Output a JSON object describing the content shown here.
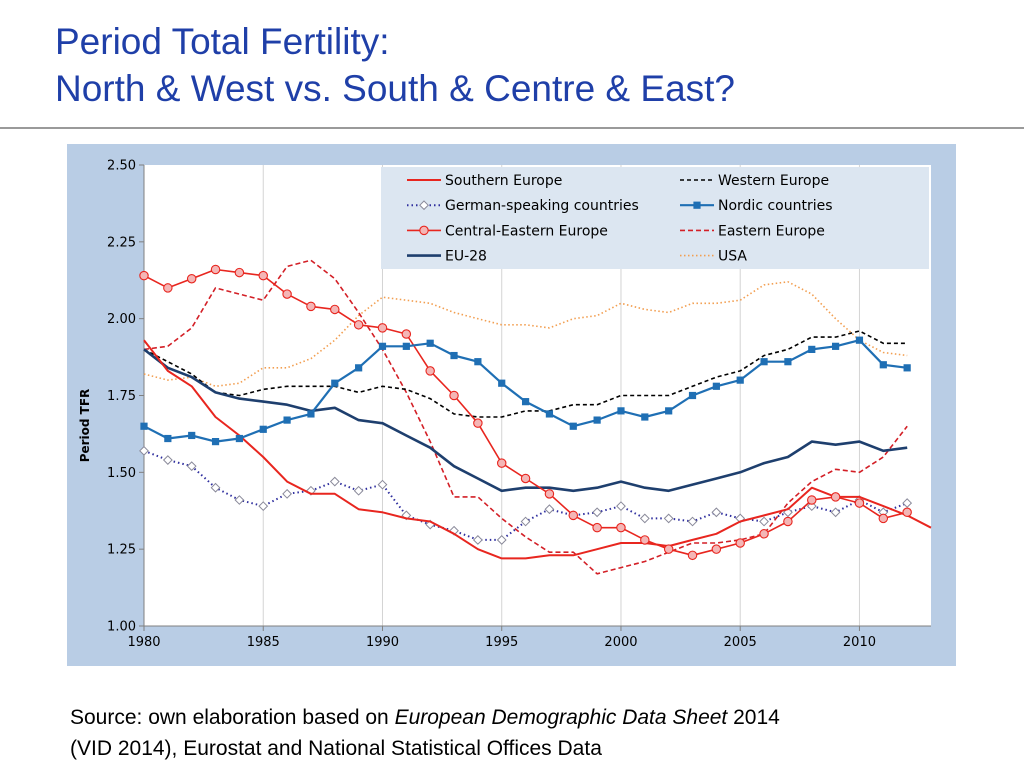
{
  "header": {
    "title_line1": "Period Total Fertility:",
    "title_line2": "North & West vs. South & Centre & East?"
  },
  "source": {
    "prefix": "Source: own elaboration based on ",
    "italic": "European Demographic Data Sheet",
    "suffix": " 2014",
    "line2": "(VID 2014), Eurostat and National Statistical Offices Data"
  },
  "colors": {
    "title": "#1f3fa8",
    "frame": "#b9cde5",
    "grid": "#d4d4d4"
  },
  "chart_data": {
    "type": "line",
    "title": "",
    "xlabel": "",
    "ylabel": "Period TFR",
    "xlim": [
      1980,
      2013
    ],
    "ylim": [
      1.0,
      2.5
    ],
    "xticks": [
      "1980",
      "1985",
      "1990",
      "1995",
      "2000",
      "2005",
      "2010"
    ],
    "yticks": [
      "1.00",
      "1.25",
      "1.50",
      "1.75",
      "2.00",
      "2.25",
      "2.50"
    ],
    "grid": "vertical",
    "legend_position": "top-right",
    "series": [
      {
        "name": "Southern Europe",
        "color": "#e8261f",
        "dash": "solid",
        "marker": "none",
        "width": 2,
        "x": [
          1980,
          1981,
          1982,
          1983,
          1984,
          1985,
          1986,
          1987,
          1988,
          1989,
          1990,
          1991,
          1992,
          1993,
          1994,
          1995,
          1996,
          1997,
          1998,
          1999,
          2000,
          2001,
          2002,
          2003,
          2004,
          2005,
          2006,
          2007,
          2008,
          2009,
          2010,
          2011,
          2012,
          2013
        ],
        "values": [
          1.93,
          1.83,
          1.78,
          1.68,
          1.62,
          1.55,
          1.47,
          1.43,
          1.43,
          1.38,
          1.37,
          1.35,
          1.34,
          1.3,
          1.25,
          1.22,
          1.22,
          1.23,
          1.23,
          1.25,
          1.27,
          1.27,
          1.26,
          1.28,
          1.3,
          1.34,
          1.36,
          1.38,
          1.45,
          1.42,
          1.42,
          1.39,
          1.36,
          1.32
        ]
      },
      {
        "name": "Western Europe",
        "color": "#000000",
        "dash": "4,3",
        "marker": "none",
        "width": 1.6,
        "x": [
          1980,
          1981,
          1982,
          1983,
          1984,
          1985,
          1986,
          1987,
          1988,
          1989,
          1990,
          1991,
          1992,
          1993,
          1994,
          1995,
          1996,
          1997,
          1998,
          1999,
          2000,
          2001,
          2002,
          2003,
          2004,
          2005,
          2006,
          2007,
          2008,
          2009,
          2010,
          2011,
          2012
        ],
        "values": [
          1.9,
          1.86,
          1.82,
          1.76,
          1.75,
          1.77,
          1.78,
          1.78,
          1.78,
          1.76,
          1.78,
          1.77,
          1.74,
          1.69,
          1.68,
          1.68,
          1.7,
          1.7,
          1.72,
          1.72,
          1.75,
          1.75,
          1.75,
          1.78,
          1.81,
          1.83,
          1.88,
          1.9,
          1.94,
          1.94,
          1.96,
          1.92,
          1.92
        ]
      },
      {
        "name": "German-speaking countries",
        "color": "#2e2e9e",
        "dash": "1.5,3",
        "marker": "diamond",
        "width": 2,
        "x": [
          1980,
          1981,
          1982,
          1983,
          1984,
          1985,
          1986,
          1987,
          1988,
          1989,
          1990,
          1991,
          1992,
          1993,
          1994,
          1995,
          1996,
          1997,
          1998,
          1999,
          2000,
          2001,
          2002,
          2003,
          2004,
          2005,
          2006,
          2007,
          2008,
          2009,
          2010,
          2011,
          2012
        ],
        "values": [
          1.57,
          1.54,
          1.52,
          1.45,
          1.41,
          1.39,
          1.43,
          1.44,
          1.47,
          1.44,
          1.46,
          1.36,
          1.33,
          1.31,
          1.28,
          1.28,
          1.34,
          1.38,
          1.36,
          1.37,
          1.39,
          1.35,
          1.35,
          1.34,
          1.37,
          1.35,
          1.34,
          1.37,
          1.39,
          1.37,
          1.41,
          1.37,
          1.4
        ]
      },
      {
        "name": "Nordic countries",
        "color": "#1f6fb4",
        "dash": "solid",
        "marker": "square",
        "width": 2.2,
        "x": [
          1980,
          1981,
          1982,
          1983,
          1984,
          1985,
          1986,
          1987,
          1988,
          1989,
          1990,
          1991,
          1992,
          1993,
          1994,
          1995,
          1996,
          1997,
          1998,
          1999,
          2000,
          2001,
          2002,
          2003,
          2004,
          2005,
          2006,
          2007,
          2008,
          2009,
          2010,
          2011,
          2012
        ],
        "values": [
          1.65,
          1.61,
          1.62,
          1.6,
          1.61,
          1.64,
          1.67,
          1.69,
          1.79,
          1.84,
          1.91,
          1.91,
          1.92,
          1.88,
          1.86,
          1.79,
          1.73,
          1.69,
          1.65,
          1.67,
          1.7,
          1.68,
          1.7,
          1.75,
          1.78,
          1.8,
          1.86,
          1.86,
          1.9,
          1.91,
          1.93,
          1.85,
          1.84
        ]
      },
      {
        "name": "Central-Eastern Europe",
        "color": "#e8261f",
        "dash": "solid",
        "marker": "circle",
        "width": 1.6,
        "x": [
          1980,
          1981,
          1982,
          1983,
          1984,
          1985,
          1986,
          1987,
          1988,
          1989,
          1990,
          1991,
          1992,
          1993,
          1994,
          1995,
          1996,
          1997,
          1998,
          1999,
          2000,
          2001,
          2002,
          2003,
          2004,
          2005,
          2006,
          2007,
          2008,
          2009,
          2010,
          2011,
          2012
        ],
        "values": [
          2.14,
          2.1,
          2.13,
          2.16,
          2.15,
          2.14,
          2.08,
          2.04,
          2.03,
          1.98,
          1.97,
          1.95,
          1.83,
          1.75,
          1.66,
          1.53,
          1.48,
          1.43,
          1.36,
          1.32,
          1.32,
          1.28,
          1.25,
          1.23,
          1.25,
          1.27,
          1.3,
          1.34,
          1.41,
          1.42,
          1.4,
          1.35,
          1.37
        ]
      },
      {
        "name": "Eastern Europe",
        "color": "#d31f26",
        "dash": "5,3",
        "marker": "none",
        "width": 1.6,
        "x": [
          1980,
          1981,
          1982,
          1983,
          1984,
          1985,
          1986,
          1987,
          1988,
          1989,
          1990,
          1991,
          1992,
          1993,
          1994,
          1995,
          1996,
          1997,
          1998,
          1999,
          2000,
          2001,
          2002,
          2003,
          2004,
          2005,
          2006,
          2007,
          2008,
          2009,
          2010,
          2011,
          2012
        ],
        "values": [
          1.9,
          1.91,
          1.97,
          2.1,
          2.08,
          2.06,
          2.17,
          2.19,
          2.13,
          2.02,
          1.9,
          1.76,
          1.6,
          1.42,
          1.42,
          1.35,
          1.29,
          1.24,
          1.24,
          1.17,
          1.19,
          1.21,
          1.24,
          1.27,
          1.27,
          1.28,
          1.3,
          1.4,
          1.47,
          1.51,
          1.5,
          1.55,
          1.65
        ]
      },
      {
        "name": "EU-28",
        "color": "#1e3f6e",
        "dash": "solid",
        "marker": "none",
        "width": 2.6,
        "x": [
          1980,
          1981,
          1982,
          1983,
          1984,
          1985,
          1986,
          1987,
          1988,
          1989,
          1990,
          1991,
          1992,
          1993,
          1994,
          1995,
          1996,
          1997,
          1998,
          1999,
          2000,
          2001,
          2002,
          2003,
          2004,
          2005,
          2006,
          2007,
          2008,
          2009,
          2010,
          2011,
          2012
        ],
        "values": [
          1.9,
          1.84,
          1.81,
          1.76,
          1.74,
          1.73,
          1.72,
          1.7,
          1.71,
          1.67,
          1.66,
          1.62,
          1.58,
          1.52,
          1.48,
          1.44,
          1.45,
          1.45,
          1.44,
          1.45,
          1.47,
          1.45,
          1.44,
          1.46,
          1.48,
          1.5,
          1.53,
          1.55,
          1.6,
          1.59,
          1.6,
          1.57,
          1.58
        ]
      },
      {
        "name": "USA",
        "color": "#f29e50",
        "dash": "1.5,2.5",
        "marker": "none",
        "width": 1.6,
        "x": [
          1980,
          1981,
          1982,
          1983,
          1984,
          1985,
          1986,
          1987,
          1988,
          1989,
          1990,
          1991,
          1992,
          1993,
          1994,
          1995,
          1996,
          1997,
          1998,
          1999,
          2000,
          2001,
          2002,
          2003,
          2004,
          2005,
          2006,
          2007,
          2008,
          2009,
          2010,
          2011,
          2012
        ],
        "values": [
          1.82,
          1.8,
          1.81,
          1.78,
          1.79,
          1.84,
          1.84,
          1.87,
          1.93,
          2.01,
          2.07,
          2.06,
          2.05,
          2.02,
          2.0,
          1.98,
          1.98,
          1.97,
          2.0,
          2.01,
          2.05,
          2.03,
          2.02,
          2.05,
          2.05,
          2.06,
          2.11,
          2.12,
          2.08,
          2.0,
          1.93,
          1.89,
          1.88
        ]
      }
    ],
    "legend": {
      "columns": 2,
      "order": [
        "Southern Europe",
        "Western Europe",
        "German-speaking countries",
        "Nordic countries",
        "Central-Eastern Europe",
        "Eastern Europe",
        "EU-28",
        "USA"
      ]
    }
  }
}
